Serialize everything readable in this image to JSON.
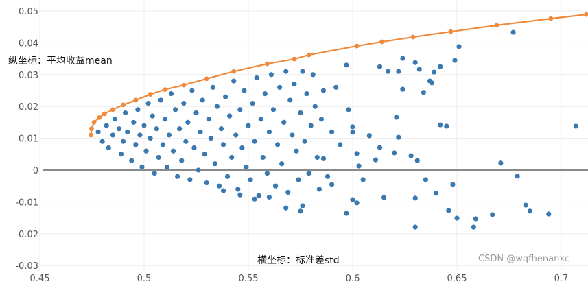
{
  "chart_data": {
    "type": "scatter",
    "xlabel": "横坐标：标准差std",
    "ylabel": "纵坐标：平均收益mean",
    "xlim": [
      0.45,
      0.712
    ],
    "ylim": [
      -0.03,
      0.052
    ],
    "x_ticks": [
      "0.45",
      "0.5",
      "0.55",
      "0.6",
      "0.65",
      "0.7"
    ],
    "y_ticks": [
      "0.05",
      "0.04",
      "0.03",
      "0.02",
      "0.01",
      "0",
      "-0.01",
      "-0.02",
      "-0.03"
    ],
    "grid": true,
    "colors": {
      "portfolios": "#3a78b0",
      "frontier": "#ef8a3c",
      "zero_line": "#8a8a8a",
      "grid": "#ececec"
    },
    "series": [
      {
        "type": "scatter",
        "points": [
          [
            0.478,
            0.012
          ],
          [
            0.48,
            0.009
          ],
          [
            0.482,
            0.014
          ],
          [
            0.483,
            0.007
          ],
          [
            0.485,
            0.011
          ],
          [
            0.486,
            0.016
          ],
          [
            0.488,
            0.013
          ],
          [
            0.489,
            0.005
          ],
          [
            0.49,
            0.009
          ],
          [
            0.491,
            0.018
          ],
          [
            0.492,
            0.012
          ],
          [
            0.494,
            0.003
          ],
          [
            0.495,
            0.015
          ],
          [
            0.496,
            0.008
          ],
          [
            0.497,
            0.019
          ],
          [
            0.498,
            0.011
          ],
          [
            0.499,
            0.001
          ],
          [
            0.5,
            0.014
          ],
          [
            0.501,
            0.006
          ],
          [
            0.502,
            0.021
          ],
          [
            0.503,
            0.01
          ],
          [
            0.504,
            0.017
          ],
          [
            0.505,
            -0.001
          ],
          [
            0.506,
            0.013
          ],
          [
            0.507,
            0.004
          ],
          [
            0.508,
            0.022
          ],
          [
            0.509,
            0.008
          ],
          [
            0.51,
            0.016
          ],
          [
            0.511,
            0.001
          ],
          [
            0.512,
            0.011
          ],
          [
            0.513,
            0.024
          ],
          [
            0.514,
            0.006
          ],
          [
            0.515,
            0.019
          ],
          [
            0.516,
            -0.002
          ],
          [
            0.517,
            0.013
          ],
          [
            0.518,
            0.003
          ],
          [
            0.519,
            0.021
          ],
          [
            0.52,
            0.009
          ],
          [
            0.521,
            0.015
          ],
          [
            0.522,
            -0.003
          ],
          [
            0.523,
            0.025
          ],
          [
            0.524,
            0.007
          ],
          [
            0.525,
            0.018
          ],
          [
            0.526,
            0.0
          ],
          [
            0.527,
            0.012
          ],
          [
            0.528,
            0.022
          ],
          [
            0.529,
            0.005
          ],
          [
            0.53,
            -0.004
          ],
          [
            0.531,
            0.016
          ],
          [
            0.532,
            0.01
          ],
          [
            0.533,
            0.026
          ],
          [
            0.534,
            0.002
          ],
          [
            0.535,
            0.02
          ],
          [
            0.536,
            -0.005
          ],
          [
            0.537,
            0.013
          ],
          [
            0.538,
            0.008
          ],
          [
            0.539,
            0.023
          ],
          [
            0.54,
            -0.002
          ],
          [
            0.541,
            0.017
          ],
          [
            0.542,
            0.004
          ],
          [
            0.543,
            0.028
          ],
          [
            0.544,
            0.011
          ],
          [
            0.545,
            -0.006
          ],
          [
            0.546,
            0.019
          ],
          [
            0.547,
            0.007
          ],
          [
            0.548,
            0.025
          ],
          [
            0.549,
            0.001
          ],
          [
            0.55,
            0.014
          ],
          [
            0.551,
            -0.003
          ],
          [
            0.552,
            0.021
          ],
          [
            0.553,
            0.009
          ],
          [
            0.554,
            0.029
          ],
          [
            0.555,
            -0.008
          ],
          [
            0.556,
            0.016
          ],
          [
            0.557,
            0.004
          ],
          [
            0.558,
            0.024
          ],
          [
            0.559,
            -0.001
          ],
          [
            0.56,
            0.012
          ],
          [
            0.561,
            0.03
          ],
          [
            0.562,
            0.019
          ],
          [
            0.563,
            -0.005
          ],
          [
            0.564,
            0.008
          ],
          [
            0.565,
            0.026
          ],
          [
            0.566,
            0.002
          ],
          [
            0.567,
            0.015
          ],
          [
            0.568,
            0.031
          ],
          [
            0.569,
            -0.007
          ],
          [
            0.57,
            0.022
          ],
          [
            0.571,
            0.011
          ],
          [
            0.572,
            0.027
          ],
          [
            0.573,
            0.006
          ],
          [
            0.574,
            -0.003
          ],
          [
            0.575,
            0.018
          ],
          [
            0.576,
            0.031
          ],
          [
            0.577,
            0.009
          ],
          [
            0.578,
            0.024
          ],
          [
            0.579,
            -0.001
          ],
          [
            0.58,
            0.014
          ],
          [
            0.581,
            0.03
          ],
          [
            0.582,
            0.02
          ],
          [
            0.583,
            0.004
          ],
          [
            0.585,
            0.016
          ],
          [
            0.586,
            0.025
          ],
          [
            0.588,
            -0.002
          ],
          [
            0.59,
            0.012
          ],
          [
            0.592,
            0.026
          ],
          [
            0.594,
            0.008
          ],
          [
            0.597,
            0.033
          ],
          [
            0.598,
            0.019
          ],
          [
            0.677,
            0.0433
          ],
          [
            0.651,
            0.0388
          ],
          [
            0.649,
            0.0345
          ],
          [
            0.632,
            0.0317
          ],
          [
            0.63,
            0.0338
          ],
          [
            0.642,
            0.0325
          ],
          [
            0.613,
            0.0325
          ],
          [
            0.617,
            0.031
          ],
          [
            0.622,
            0.031
          ],
          [
            0.624,
            0.0351
          ],
          [
            0.639,
            0.0308
          ],
          [
            0.637,
            0.028
          ],
          [
            0.638,
            0.0274
          ],
          [
            0.634,
            0.0244
          ],
          [
            0.642,
            0.0142
          ],
          [
            0.645,
            0.0138
          ],
          [
            0.624,
            0.0254
          ],
          [
            0.621,
            0.0166
          ],
          [
            0.6,
            0.0136
          ],
          [
            0.6,
            0.0119
          ],
          [
            0.608,
            0.0108
          ],
          [
            0.613,
            0.0071
          ],
          [
            0.622,
            0.0103
          ],
          [
            0.602,
            0.0052
          ],
          [
            0.603,
            0.0013
          ],
          [
            0.611,
            0.0032
          ],
          [
            0.62,
            0.0054
          ],
          [
            0.628,
            0.0045
          ],
          [
            0.631,
            0.003
          ],
          [
            0.635,
            -0.003
          ],
          [
            0.671,
            0.0022
          ],
          [
            0.679,
            -0.0019
          ],
          [
            0.707,
            0.0138
          ],
          [
            0.6,
            -0.0093
          ],
          [
            0.602,
            -0.0103
          ],
          [
            0.615,
            -0.0086
          ],
          [
            0.63,
            -0.0088
          ],
          [
            0.64,
            -0.0073
          ],
          [
            0.646,
            -0.0127
          ],
          [
            0.648,
            -0.0045
          ],
          [
            0.65,
            -0.0151
          ],
          [
            0.658,
            -0.0179
          ],
          [
            0.659,
            -0.0153
          ],
          [
            0.667,
            -0.014
          ],
          [
            0.683,
            -0.011
          ],
          [
            0.685,
            -0.0129
          ],
          [
            0.694,
            -0.0138
          ],
          [
            0.63,
            -0.0179
          ],
          [
            0.597,
            -0.0136
          ],
          [
            0.576,
            -0.0112
          ],
          [
            0.575,
            -0.0129
          ],
          [
            0.568,
            -0.0119
          ],
          [
            0.553,
            -0.0091
          ],
          [
            0.538,
            -0.0065
          ],
          [
            0.546,
            -0.0078
          ],
          [
            0.56,
            -0.0085
          ],
          [
            0.584,
            -0.006
          ],
          [
            0.59,
            -0.0045
          ],
          [
            0.586,
            0.0036
          ],
          [
            0.605,
            -0.003
          ]
        ]
      },
      {
        "type": "line",
        "points": [
          [
            0.4745,
            0.011
          ],
          [
            0.4748,
            0.013
          ],
          [
            0.476,
            0.015
          ],
          [
            0.4785,
            0.0165
          ],
          [
            0.481,
            0.0177
          ],
          [
            0.485,
            0.019
          ],
          [
            0.49,
            0.0205
          ],
          [
            0.496,
            0.022
          ],
          [
            0.503,
            0.0238
          ],
          [
            0.51,
            0.0253
          ],
          [
            0.519,
            0.0267
          ],
          [
            0.53,
            0.0287
          ],
          [
            0.543,
            0.031
          ],
          [
            0.559,
            0.0334
          ],
          [
            0.572,
            0.0349
          ],
          [
            0.579,
            0.0362
          ],
          [
            0.602,
            0.039
          ],
          [
            0.614,
            0.0403
          ],
          [
            0.629,
            0.0418
          ],
          [
            0.647,
            0.0435
          ],
          [
            0.669,
            0.0455
          ],
          [
            0.695,
            0.0476
          ],
          [
            0.712,
            0.0489
          ]
        ]
      }
    ]
  },
  "watermark": "CSDN @wqfhenanxc"
}
